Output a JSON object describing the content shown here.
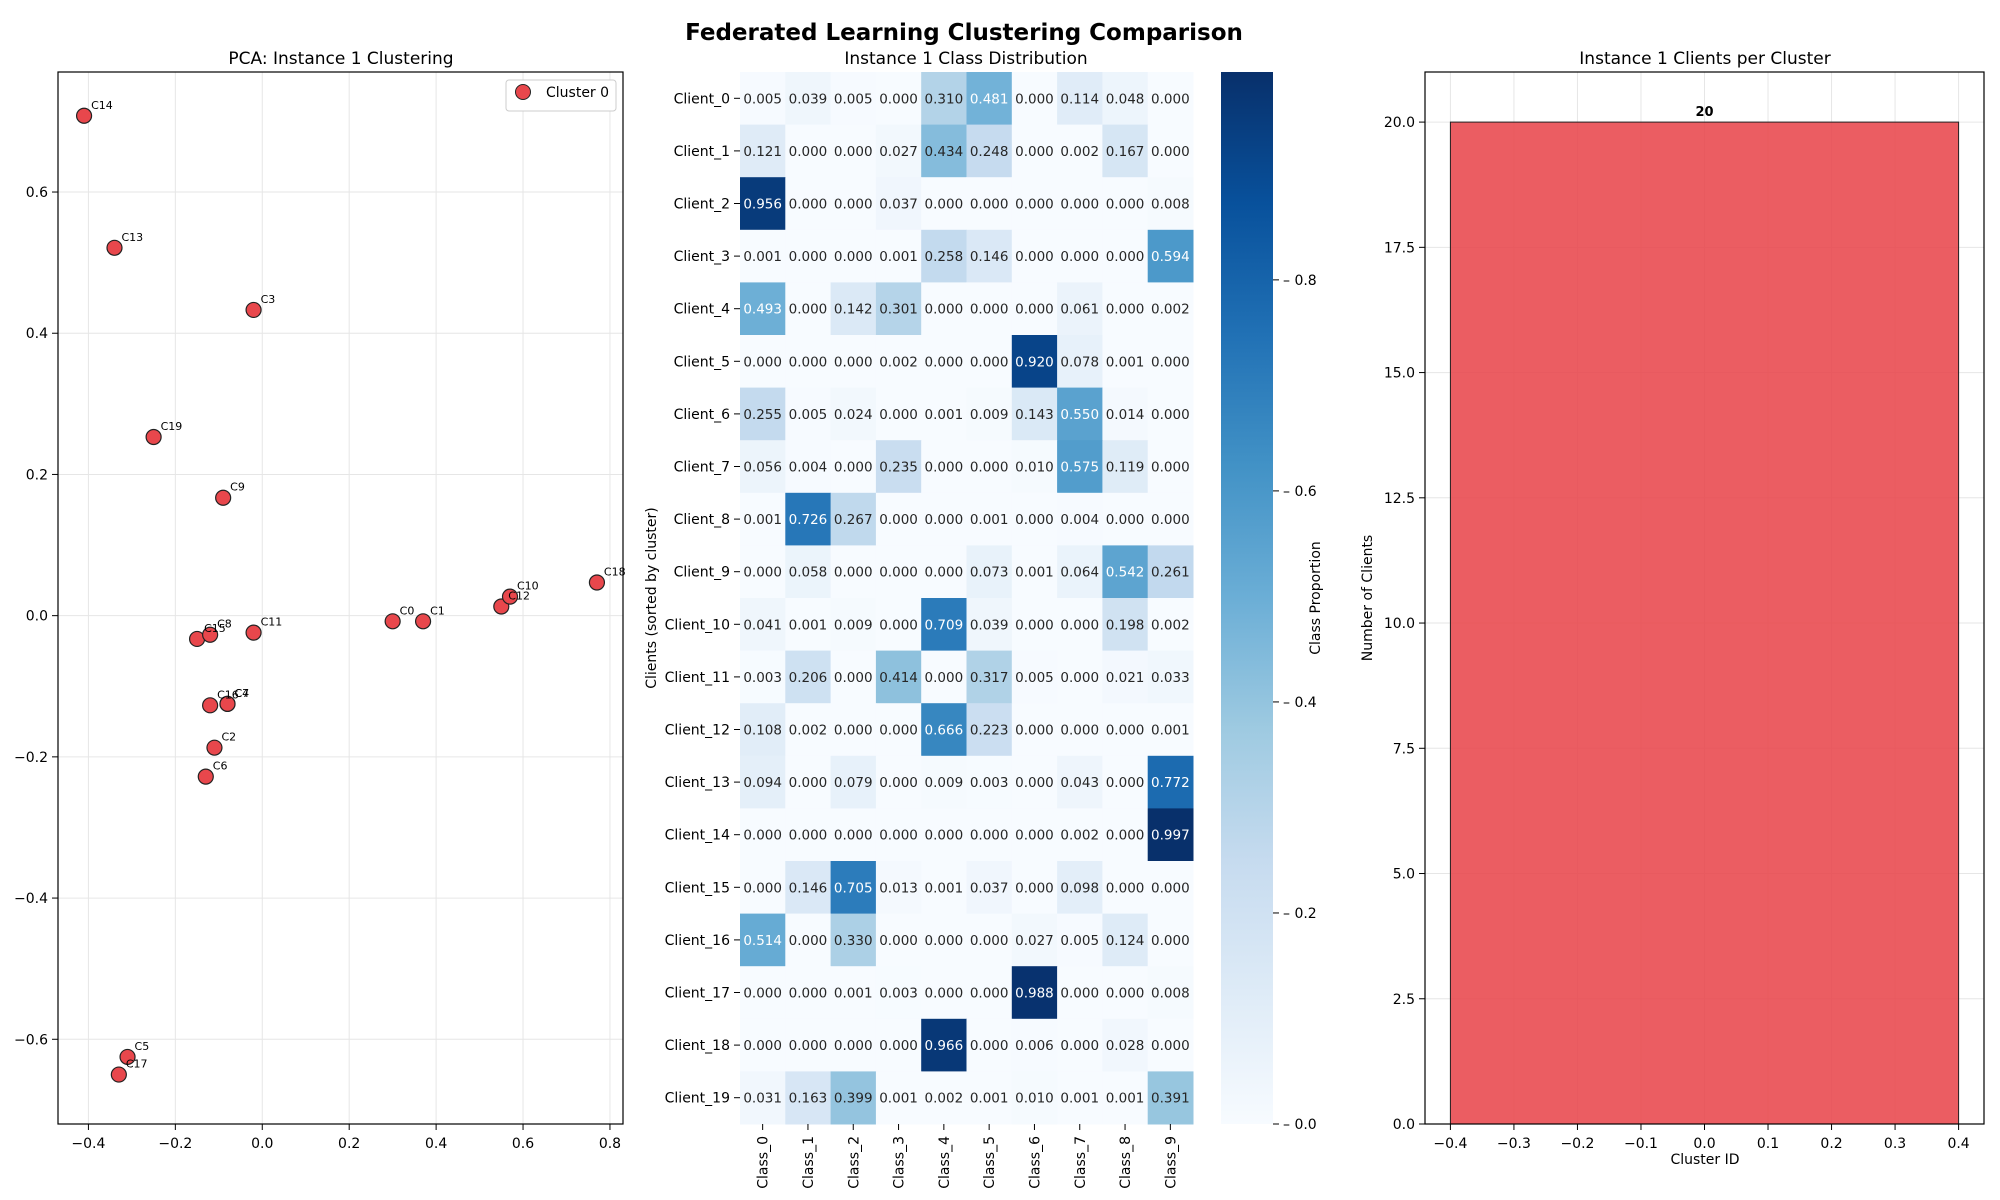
{
  "figure_title": "Federated Learning Clustering Comparison",
  "colors": {
    "cluster_0": "#e8474c",
    "point_edge": "#222222",
    "grid": "#e6e6e6",
    "heat_low": "#f7fbff",
    "heat_high": "#08306b"
  },
  "chart_data": [
    {
      "type": "scatter",
      "title": "PCA: Instance 1 Clustering",
      "xlabel": "",
      "ylabel": "",
      "xlim": [
        -0.47,
        0.83
      ],
      "ylim": [
        -0.72,
        0.77
      ],
      "xticks": [
        -0.4,
        -0.2,
        0.0,
        0.2,
        0.4,
        0.6,
        0.8
      ],
      "xtick_labels": [
        "−0.4",
        "−0.2",
        "0.0",
        "0.2",
        "0.4",
        "0.6",
        "0.8"
      ],
      "yticks": [
        -0.6,
        -0.4,
        -0.2,
        0.0,
        0.2,
        0.4,
        0.6
      ],
      "ytick_labels": [
        "−0.6",
        "−0.4",
        "−0.2",
        "0.0",
        "0.2",
        "0.4",
        "0.6"
      ],
      "grid": true,
      "legend": {
        "position": "top-right",
        "entries": [
          "Cluster 0"
        ]
      },
      "series": [
        {
          "name": "Cluster 0",
          "points": [
            {
              "label": "C0",
              "x": 0.3,
              "y": -0.008
            },
            {
              "label": "C1",
              "x": 0.37,
              "y": -0.008
            },
            {
              "label": "C2",
              "x": -0.11,
              "y": -0.187
            },
            {
              "label": "C3",
              "x": -0.02,
              "y": 0.433
            },
            {
              "label": "C4",
              "x": -0.08,
              "y": -0.125
            },
            {
              "label": "C5",
              "x": -0.31,
              "y": -0.625
            },
            {
              "label": "C6",
              "x": -0.13,
              "y": -0.228
            },
            {
              "label": "C7",
              "x": -0.08,
              "y": -0.125
            },
            {
              "label": "C8",
              "x": -0.12,
              "y": -0.027
            },
            {
              "label": "C9",
              "x": -0.09,
              "y": 0.167
            },
            {
              "label": "C10",
              "x": 0.57,
              "y": 0.027
            },
            {
              "label": "C11",
              "x": -0.02,
              "y": -0.024
            },
            {
              "label": "C12",
              "x": 0.55,
              "y": 0.013
            },
            {
              "label": "C13",
              "x": -0.34,
              "y": 0.521
            },
            {
              "label": "C14",
              "x": -0.41,
              "y": 0.708
            },
            {
              "label": "C15",
              "x": -0.15,
              "y": -0.033
            },
            {
              "label": "C16",
              "x": -0.12,
              "y": -0.127
            },
            {
              "label": "C17",
              "x": -0.33,
              "y": -0.65
            },
            {
              "label": "C18",
              "x": 0.77,
              "y": 0.047
            },
            {
              "label": "C19",
              "x": -0.25,
              "y": 0.253
            }
          ],
          "plot_order": [
            "C14",
            "C13",
            "C3",
            "C19",
            "C9",
            "C15",
            "C8",
            "C11",
            "C0",
            "C1",
            "C12",
            "C10",
            "C18",
            "C16",
            "C4",
            "C7",
            "C2",
            "C6",
            "C5",
            "C17"
          ]
        }
      ]
    },
    {
      "type": "heatmap",
      "title": "Instance 1 Class Distribution",
      "xlabel": "",
      "ylabel": "Clients (sorted by cluster)",
      "columns": [
        "Class_0",
        "Class_1",
        "Class_2",
        "Class_3",
        "Class_4",
        "Class_5",
        "Class_6",
        "Class_7",
        "Class_8",
        "Class_9"
      ],
      "rows": [
        "Client_0",
        "Client_1",
        "Client_2",
        "Client_3",
        "Client_4",
        "Client_5",
        "Client_6",
        "Client_7",
        "Client_8",
        "Client_9",
        "Client_10",
        "Client_11",
        "Client_12",
        "Client_13",
        "Client_14",
        "Client_15",
        "Client_16",
        "Client_17",
        "Client_18",
        "Client_19"
      ],
      "values": [
        [
          0.005,
          0.039,
          0.005,
          0.0,
          0.31,
          0.481,
          0.0,
          0.114,
          0.048,
          0.0
        ],
        [
          0.121,
          0.0,
          0.0,
          0.027,
          0.434,
          0.248,
          0.0,
          0.002,
          0.167,
          0.0
        ],
        [
          0.956,
          0.0,
          0.0,
          0.037,
          0.0,
          0.0,
          0.0,
          0.0,
          0.0,
          0.008
        ],
        [
          0.001,
          0.0,
          0.0,
          0.001,
          0.258,
          0.146,
          0.0,
          0.0,
          0.0,
          0.594
        ],
        [
          0.493,
          0.0,
          0.142,
          0.301,
          0.0,
          0.0,
          0.0,
          0.061,
          0.0,
          0.002
        ],
        [
          0.0,
          0.0,
          0.0,
          0.002,
          0.0,
          0.0,
          0.92,
          0.078,
          0.001,
          0.0
        ],
        [
          0.255,
          0.005,
          0.024,
          0.0,
          0.001,
          0.009,
          0.143,
          0.55,
          0.014,
          0.0
        ],
        [
          0.056,
          0.004,
          0.0,
          0.235,
          0.0,
          0.0,
          0.01,
          0.575,
          0.119,
          0.0
        ],
        [
          0.001,
          0.726,
          0.267,
          0.0,
          0.0,
          0.001,
          0.0,
          0.004,
          0.0,
          0.0
        ],
        [
          0.0,
          0.058,
          0.0,
          0.0,
          0.0,
          0.073,
          0.001,
          0.064,
          0.542,
          0.261
        ],
        [
          0.041,
          0.001,
          0.009,
          0.0,
          0.709,
          0.039,
          0.0,
          0.0,
          0.198,
          0.002
        ],
        [
          0.003,
          0.206,
          0.0,
          0.414,
          0.0,
          0.317,
          0.005,
          0.0,
          0.021,
          0.033
        ],
        [
          0.108,
          0.002,
          0.0,
          0.0,
          0.666,
          0.223,
          0.0,
          0.0,
          0.0,
          0.001
        ],
        [
          0.094,
          0.0,
          0.079,
          0.0,
          0.009,
          0.003,
          0.0,
          0.043,
          0.0,
          0.772
        ],
        [
          0.0,
          0.0,
          0.0,
          0.0,
          0.0,
          0.0,
          0.0,
          0.002,
          0.0,
          0.997
        ],
        [
          0.0,
          0.146,
          0.705,
          0.013,
          0.001,
          0.037,
          0.0,
          0.098,
          0.0,
          0.0
        ],
        [
          0.514,
          0.0,
          0.33,
          0.0,
          0.0,
          0.0,
          0.027,
          0.005,
          0.124,
          0.0
        ],
        [
          0.0,
          0.0,
          0.001,
          0.003,
          0.0,
          0.0,
          0.988,
          0.0,
          0.0,
          0.008
        ],
        [
          0.0,
          0.0,
          0.0,
          0.0,
          0.966,
          0.0,
          0.006,
          0.0,
          0.028,
          0.0
        ],
        [
          0.031,
          0.163,
          0.399,
          0.001,
          0.002,
          0.001,
          0.01,
          0.001,
          0.001,
          0.391
        ]
      ],
      "colorbar": {
        "label": "Class Proportion",
        "range": [
          0.0,
          0.997
        ],
        "ticks": [
          0.0,
          0.2,
          0.4,
          0.6,
          0.8
        ],
        "tick_labels": [
          "0.0",
          "0.2",
          "0.4",
          "0.6",
          "0.8"
        ]
      }
    },
    {
      "type": "bar",
      "title": "Instance 1 Clients per Cluster",
      "xlabel": "Cluster ID",
      "ylabel": "Number of Clients",
      "categories": [
        "0"
      ],
      "x": [
        0
      ],
      "values": [
        20
      ],
      "value_labels": [
        "20"
      ],
      "bar_width": 0.8,
      "xlim": [
        -0.44,
        0.44
      ],
      "ylim": [
        0,
        21
      ],
      "xticks": [
        -0.4,
        -0.3,
        -0.2,
        -0.1,
        0.0,
        0.1,
        0.2,
        0.3,
        0.4
      ],
      "xtick_labels": [
        "−0.4",
        "−0.3",
        "−0.2",
        "−0.1",
        "0.0",
        "0.1",
        "0.2",
        "0.3",
        "0.4"
      ],
      "yticks": [
        0,
        2.5,
        5,
        7.5,
        10,
        12.5,
        15,
        17.5,
        20
      ],
      "ytick_labels": [
        "0.0",
        "2.5",
        "5.0",
        "7.5",
        "10.0",
        "12.5",
        "15.0",
        "17.5",
        "20.0"
      ],
      "grid": true
    }
  ]
}
